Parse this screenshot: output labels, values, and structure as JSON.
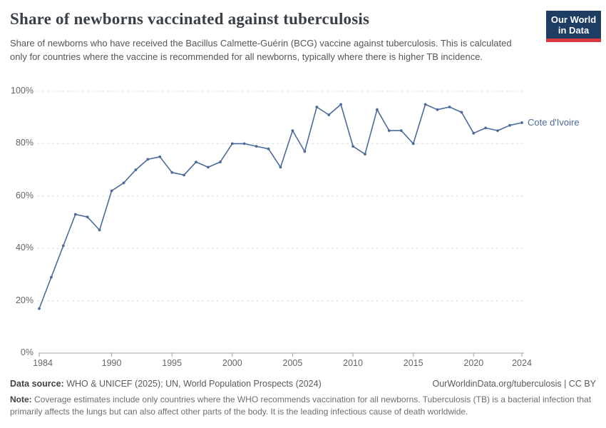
{
  "header": {
    "title": "Share of newborns vaccinated against tuberculosis",
    "subtitle": "Share of newborns who have received the Bacillus Calmette-Guérin (BCG) vaccine against tuberculosis. This is calculated only for countries where the vaccine is recommended for all newborns, typically where there is higher TB incidence.",
    "logo": {
      "line1": "Our World",
      "line2": "in Data",
      "bg_color": "#1d3d63",
      "stripe_color": "#d7383f"
    }
  },
  "chart_data": {
    "type": "line",
    "title": "Share of newborns vaccinated against tuberculosis",
    "xlabel": "",
    "ylabel": "",
    "xlim": [
      1984,
      2024
    ],
    "ylim": [
      0,
      100
    ],
    "grid": "horizontal-dashed",
    "x_ticks": [
      1984,
      1990,
      1995,
      2000,
      2005,
      2010,
      2015,
      2020,
      2024
    ],
    "x_tick_labels": [
      "1984",
      "1990",
      "1995",
      "2000",
      "2005",
      "2010",
      "2015",
      "2020",
      "2024"
    ],
    "y_ticks": [
      0,
      20,
      40,
      60,
      80,
      100
    ],
    "y_tick_labels": [
      "0%",
      "20%",
      "40%",
      "60%",
      "80%",
      "100%"
    ],
    "series": [
      {
        "name": "Cote d'Ivoire",
        "color": "#4C6A9C",
        "x": [
          1984,
          1985,
          1986,
          1987,
          1988,
          1989,
          1990,
          1991,
          1992,
          1993,
          1994,
          1995,
          1996,
          1997,
          1998,
          1999,
          2000,
          2001,
          2002,
          2003,
          2004,
          2005,
          2006,
          2007,
          2008,
          2009,
          2010,
          2011,
          2012,
          2013,
          2014,
          2015,
          2016,
          2017,
          2018,
          2019,
          2020,
          2021,
          2022,
          2023,
          2024
        ],
        "values": [
          17,
          29,
          41,
          53,
          52,
          47,
          62,
          65,
          70,
          74,
          75,
          69,
          68,
          73,
          71,
          73,
          80,
          80,
          79,
          78,
          71,
          85,
          77,
          94,
          91,
          95,
          79,
          76,
          93,
          85,
          85,
          80,
          95,
          93,
          94,
          92,
          84,
          86,
          85,
          87,
          88
        ]
      }
    ],
    "legend_position": "right-of-last-point",
    "colors": {
      "grid": "#dcdcdc",
      "axis": "#a3a3a3",
      "tick_label": "#666666"
    }
  },
  "footer": {
    "datasource_label": "Data source:",
    "datasource_text": " WHO & UNICEF (2025); UN, World Population Prospects (2024)",
    "link_text": "OurWorldinData.org/tuberculosis | CC BY",
    "note_label": "Note:",
    "note_text": " Coverage estimates include only countries where the WHO recommends vaccination for all newborns. Tuberculosis (TB) is a bacterial infection that primarily affects the lungs but can also affect other parts of the body. It is the leading infectious cause of death worldwide."
  }
}
